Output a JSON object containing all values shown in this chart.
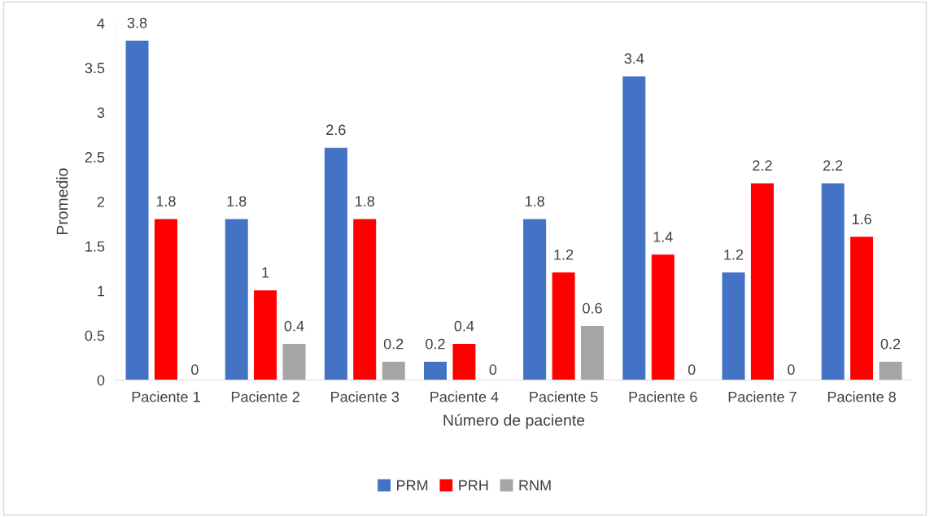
{
  "chart_data": {
    "type": "bar",
    "xlabel": "Número de paciente",
    "ylabel": "Promedio",
    "categories": [
      "Paciente 1",
      "Paciente 2",
      "Paciente 3",
      "Paciente 4",
      "Paciente 5",
      "Paciente 6",
      "Paciente 7",
      "Paciente 8"
    ],
    "series": [
      {
        "name": "PRM",
        "color": "#4472c4",
        "values": [
          3.8,
          1.8,
          2.6,
          0.2,
          1.8,
          3.4,
          1.2,
          2.2
        ]
      },
      {
        "name": "PRH",
        "color": "#ff0000",
        "values": [
          1.8,
          1,
          1.8,
          0.4,
          1.2,
          1.4,
          2.2,
          1.6
        ]
      },
      {
        "name": "RNM",
        "color": "#a5a5a5",
        "values": [
          0,
          0.4,
          0.2,
          0,
          0.6,
          0,
          0,
          0.2
        ]
      }
    ],
    "ylim": [
      0,
      4
    ],
    "yticks": [
      0,
      0.5,
      1,
      1.5,
      2,
      2.5,
      3,
      3.5,
      4
    ],
    "data_labels": true,
    "grid": false,
    "legend": "bottom"
  }
}
